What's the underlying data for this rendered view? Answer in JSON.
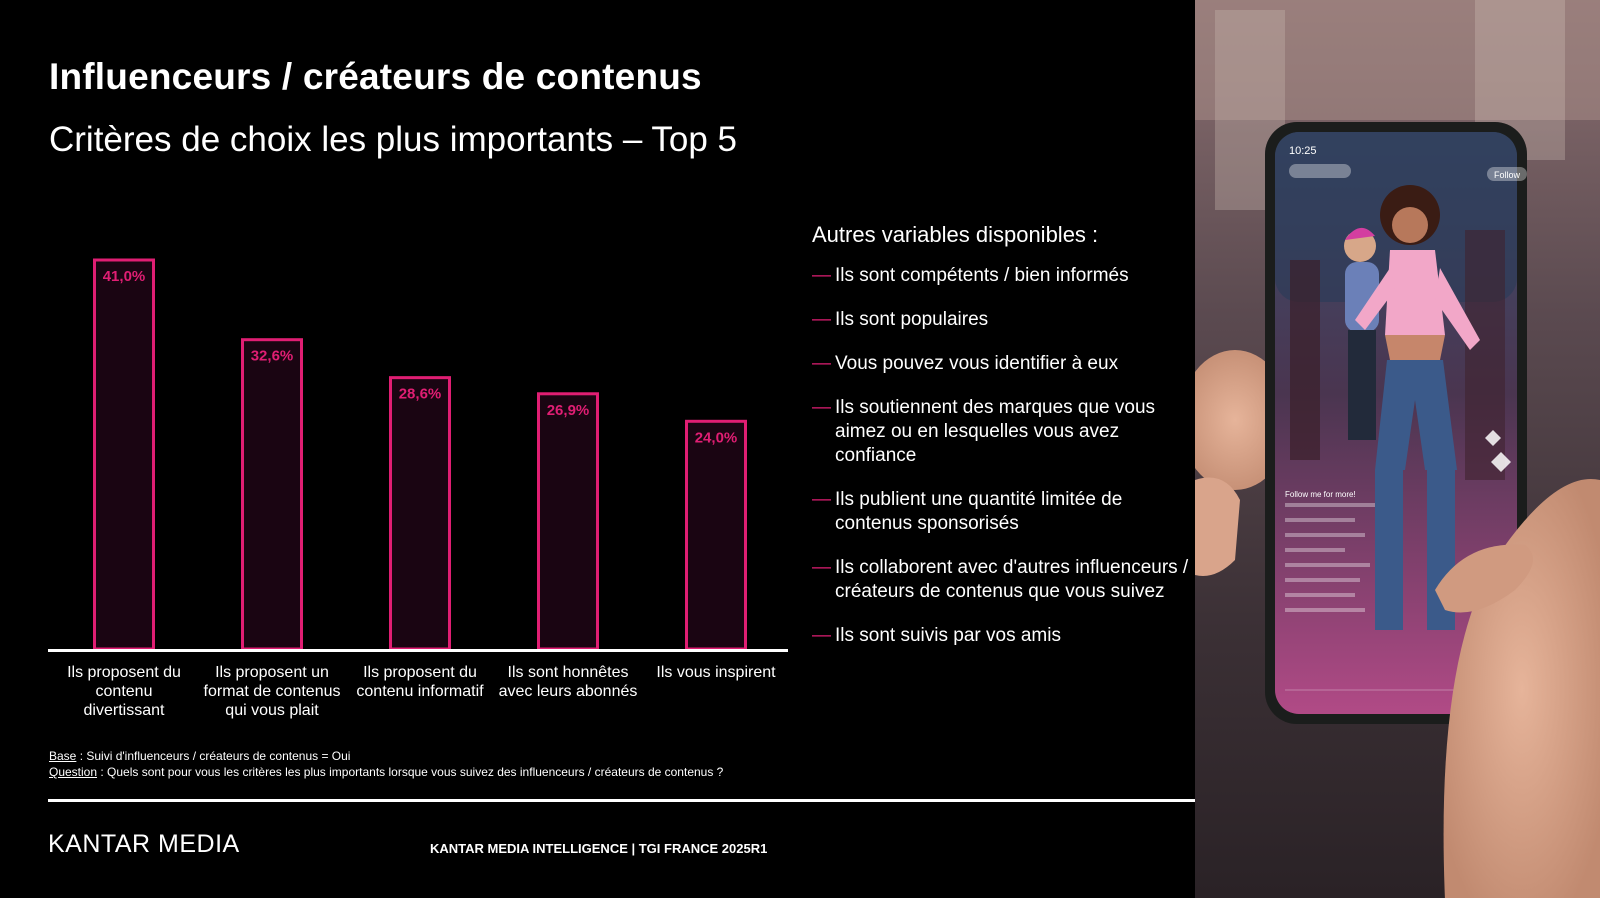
{
  "header": {
    "title": "Influenceurs / créateurs de contenus",
    "subtitle": "Critères de choix les plus importants – Top 5"
  },
  "colors": {
    "accent": "#e01e73",
    "bar_fill": "#1a0512",
    "background": "#000000",
    "text": "#ffffff"
  },
  "chart_data": {
    "type": "bar",
    "categories": [
      [
        "Ils proposent du",
        "contenu",
        "divertissant"
      ],
      [
        "Ils proposent un",
        "format de contenus",
        "qui vous plait"
      ],
      [
        "Ils proposent du",
        "contenu informatif"
      ],
      [
        "Ils sont honnêtes",
        "avec leurs abonnés"
      ],
      [
        "Ils vous inspirent"
      ]
    ],
    "values": [
      41.0,
      32.6,
      28.6,
      26.9,
      24.0
    ],
    "value_labels": [
      "41,0%",
      "32,6%",
      "28,6%",
      "26,9%",
      "24,0%"
    ],
    "title": "",
    "xlabel": "",
    "ylabel": "",
    "ylim": [
      0,
      41.0
    ],
    "grid": false,
    "legend": "none"
  },
  "sidebar": {
    "title": "Autres variables disponibles :",
    "dash": "—",
    "items": [
      "Ils sont compétents / bien informés",
      "Ils sont populaires",
      "Vous pouvez vous identifier à eux",
      "Ils soutiennent des marques que vous aimez ou en lesquelles vous avez confiance",
      "Ils publient une quantité limitée de contenus sponsorisés",
      "Ils collaborent avec d'autres influenceurs / créateurs de contenus que vous suivez",
      "Ils sont suivis par vos amis"
    ]
  },
  "footnote": {
    "base_label": "Base",
    "base_text": " : Suivi d'influenceurs / créateurs de contenus = Oui",
    "question_label": "Question",
    "question_text": " : Quels sont pour vous les critères les plus importants lorsque vous suivez des influenceurs / créateurs de contenus ?"
  },
  "footer": {
    "logo_part1": "KANTAR",
    "logo_part2": " MEDIA",
    "source": "KANTAR MEDIA INTELLIGENCE | TGI FRANCE 2025R1"
  },
  "photo": {
    "time": "10:25",
    "follow": "Follow",
    "caption": "Follow me for more!"
  }
}
